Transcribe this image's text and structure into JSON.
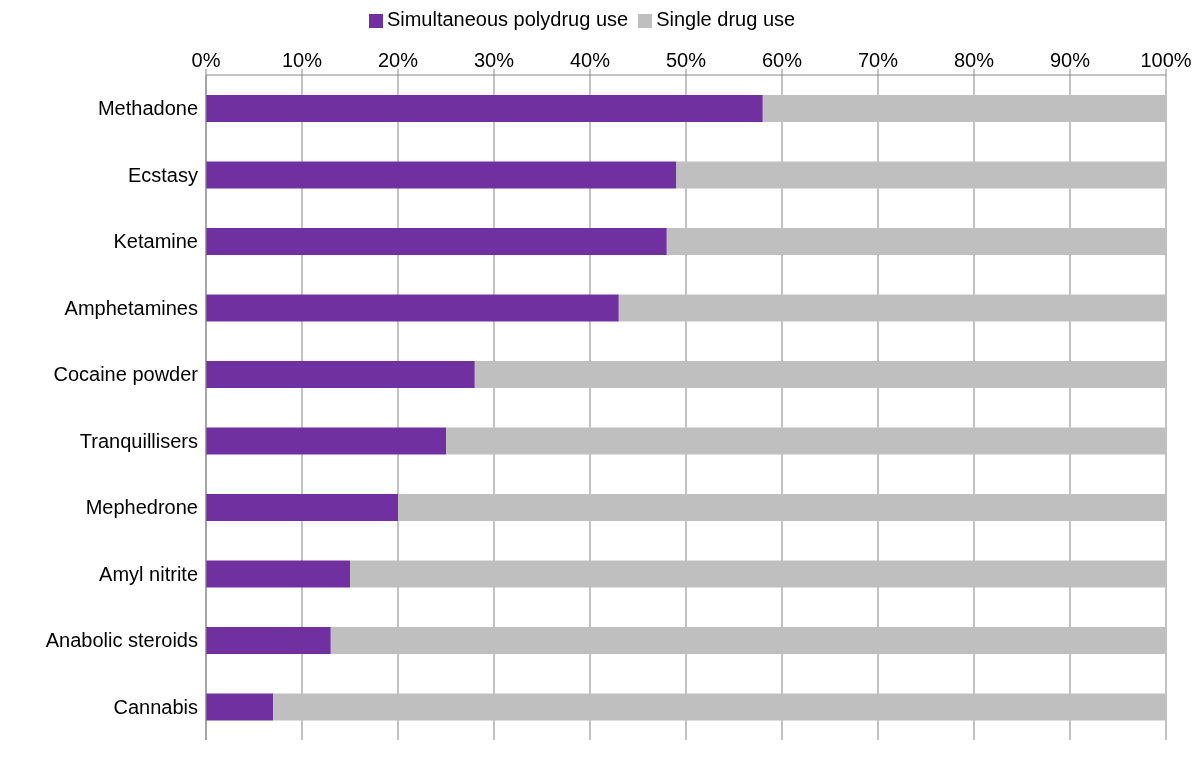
{
  "chart_data": {
    "type": "bar",
    "orientation": "horizontal",
    "stacked": true,
    "categories": [
      "Methadone",
      "Ecstasy",
      "Ketamine",
      "Amphetamines",
      "Cocaine powder",
      "Tranquillisers",
      "Mephedrone",
      "Amyl nitrite",
      "Anabolic steroids",
      "Cannabis"
    ],
    "series": [
      {
        "name": "Simultaneous polydrug use",
        "color": "#7030a0",
        "values": [
          58,
          49,
          48,
          43,
          28,
          25,
          20,
          15,
          13,
          7
        ]
      },
      {
        "name": "Single drug use",
        "color": "#bfbfbf",
        "values": [
          42,
          51,
          52,
          57,
          72,
          75,
          80,
          85,
          87,
          93
        ]
      }
    ],
    "xlim": [
      0,
      100
    ],
    "xticks": [
      {
        "value": 0,
        "label": "0%"
      },
      {
        "value": 10,
        "label": "10%"
      },
      {
        "value": 20,
        "label": "20%"
      },
      {
        "value": 30,
        "label": "30%"
      },
      {
        "value": 40,
        "label": "40%"
      },
      {
        "value": 50,
        "label": "50%"
      },
      {
        "value": 60,
        "label": "60%"
      },
      {
        "value": 70,
        "label": "70%"
      },
      {
        "value": 80,
        "label": "80%"
      },
      {
        "value": 90,
        "label": "90%"
      },
      {
        "value": 100,
        "label": "100%"
      }
    ],
    "grid": "x",
    "legend": "top"
  }
}
